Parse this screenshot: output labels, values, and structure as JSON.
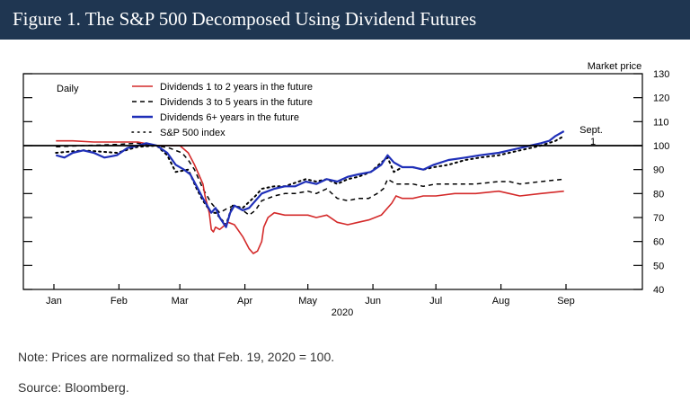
{
  "figure_title": "Figure 1. The S&P 500 Decomposed Using Dividend Futures",
  "note": "Note: Prices are normalized so that Feb. 19, 2020 = 100.",
  "source": "Source: Bloomberg.",
  "chart_data": {
    "type": "line",
    "frequency_label": "Daily",
    "xlabel": "2020",
    "ylabel": "Market price",
    "x_ticks": [
      "Jan",
      "Feb",
      "Mar",
      "Apr",
      "May",
      "Jun",
      "Jul",
      "Aug",
      "Sep"
    ],
    "y_ticks": [
      40,
      50,
      60,
      70,
      80,
      90,
      100,
      110,
      120,
      130
    ],
    "xlim": [
      "2020-01-01",
      "2020-09-01"
    ],
    "ylim": [
      40,
      130
    ],
    "reference_line": 100,
    "annotation": {
      "date": "2020-09-01",
      "text_line1": "Sept.",
      "text_line2": "1"
    },
    "colors": {
      "red": "#d42a2a",
      "blue": "#1f2fb8",
      "black": "#000000",
      "header": "#1f3651"
    },
    "series": [
      {
        "name": "Dividends 1 to 2 years in the future",
        "color": "#d42a2a",
        "style": "solid",
        "points": [
          [
            "2020-01-02",
            102
          ],
          [
            "2020-01-10",
            102
          ],
          [
            "2020-01-20",
            101.5
          ],
          [
            "2020-01-31",
            101.5
          ],
          [
            "2020-02-10",
            101.5
          ],
          [
            "2020-02-19",
            100
          ],
          [
            "2020-02-25",
            100
          ],
          [
            "2020-03-01",
            100
          ],
          [
            "2020-03-05",
            97
          ],
          [
            "2020-03-08",
            92
          ],
          [
            "2020-03-10",
            88
          ],
          [
            "2020-03-12",
            84
          ],
          [
            "2020-03-13",
            79
          ],
          [
            "2020-03-15",
            72
          ],
          [
            "2020-03-16",
            65
          ],
          [
            "2020-03-17",
            64
          ],
          [
            "2020-03-18",
            66
          ],
          [
            "2020-03-20",
            65
          ],
          [
            "2020-03-24",
            68
          ],
          [
            "2020-03-27",
            67
          ],
          [
            "2020-03-31",
            62
          ],
          [
            "2020-04-03",
            57
          ],
          [
            "2020-04-05",
            55
          ],
          [
            "2020-04-07",
            56
          ],
          [
            "2020-04-09",
            60
          ],
          [
            "2020-04-10",
            66
          ],
          [
            "2020-04-12",
            70
          ],
          [
            "2020-04-15",
            72
          ],
          [
            "2020-04-20",
            71
          ],
          [
            "2020-04-25",
            71
          ],
          [
            "2020-05-01",
            71
          ],
          [
            "2020-05-05",
            70
          ],
          [
            "2020-05-10",
            71
          ],
          [
            "2020-05-15",
            68
          ],
          [
            "2020-05-20",
            67
          ],
          [
            "2020-05-25",
            68
          ],
          [
            "2020-05-30",
            69
          ],
          [
            "2020-06-05",
            71
          ],
          [
            "2020-06-10",
            76
          ],
          [
            "2020-06-12",
            79
          ],
          [
            "2020-06-15",
            78
          ],
          [
            "2020-06-20",
            78
          ],
          [
            "2020-06-25",
            79
          ],
          [
            "2020-07-01",
            79
          ],
          [
            "2020-07-10",
            80
          ],
          [
            "2020-07-20",
            80
          ],
          [
            "2020-07-31",
            81
          ],
          [
            "2020-08-05",
            80
          ],
          [
            "2020-08-10",
            79
          ],
          [
            "2020-08-20",
            80
          ],
          [
            "2020-08-31",
            81
          ]
        ]
      },
      {
        "name": "Dividends 3 to 5 years in the future",
        "color": "#000000",
        "style": "dashed",
        "points": [
          [
            "2020-01-02",
            99.5
          ],
          [
            "2020-01-15",
            100
          ],
          [
            "2020-01-31",
            100.5
          ],
          [
            "2020-02-10",
            101
          ],
          [
            "2020-02-19",
            100
          ],
          [
            "2020-02-25",
            99
          ],
          [
            "2020-03-02",
            97
          ],
          [
            "2020-03-05",
            94
          ],
          [
            "2020-03-08",
            90
          ],
          [
            "2020-03-10",
            86
          ],
          [
            "2020-03-12",
            82
          ],
          [
            "2020-03-16",
            76
          ],
          [
            "2020-03-20",
            72
          ],
          [
            "2020-03-24",
            74
          ],
          [
            "2020-03-27",
            75
          ],
          [
            "2020-03-31",
            73
          ],
          [
            "2020-04-03",
            71
          ],
          [
            "2020-04-06",
            73
          ],
          [
            "2020-04-09",
            77
          ],
          [
            "2020-04-15",
            79
          ],
          [
            "2020-04-20",
            80
          ],
          [
            "2020-04-25",
            80
          ],
          [
            "2020-05-01",
            81
          ],
          [
            "2020-05-05",
            80
          ],
          [
            "2020-05-10",
            82
          ],
          [
            "2020-05-15",
            78
          ],
          [
            "2020-05-20",
            77
          ],
          [
            "2020-05-25",
            78
          ],
          [
            "2020-05-30",
            78
          ],
          [
            "2020-06-03",
            80
          ],
          [
            "2020-06-06",
            82
          ],
          [
            "2020-06-08",
            86
          ],
          [
            "2020-06-12",
            84
          ],
          [
            "2020-06-16",
            84
          ],
          [
            "2020-06-20",
            84
          ],
          [
            "2020-06-25",
            83
          ],
          [
            "2020-07-01",
            84
          ],
          [
            "2020-07-10",
            84
          ],
          [
            "2020-07-20",
            84
          ],
          [
            "2020-07-31",
            85
          ],
          [
            "2020-08-05",
            85
          ],
          [
            "2020-08-10",
            84
          ],
          [
            "2020-08-20",
            85
          ],
          [
            "2020-08-31",
            86
          ]
        ]
      },
      {
        "name": "Dividends 6+ years in the future",
        "color": "#1f2fb8",
        "style": "solid",
        "points": [
          [
            "2020-01-02",
            96
          ],
          [
            "2020-01-06",
            95
          ],
          [
            "2020-01-10",
            97
          ],
          [
            "2020-01-15",
            98
          ],
          [
            "2020-01-20",
            97
          ],
          [
            "2020-01-25",
            95
          ],
          [
            "2020-01-31",
            96
          ],
          [
            "2020-02-05",
            99
          ],
          [
            "2020-02-10",
            100
          ],
          [
            "2020-02-14",
            101
          ],
          [
            "2020-02-19",
            100
          ],
          [
            "2020-02-24",
            97
          ],
          [
            "2020-02-28",
            92
          ],
          [
            "2020-03-03",
            90
          ],
          [
            "2020-03-06",
            88
          ],
          [
            "2020-03-09",
            83
          ],
          [
            "2020-03-12",
            78
          ],
          [
            "2020-03-16",
            72
          ],
          [
            "2020-03-18",
            74
          ],
          [
            "2020-03-20",
            70
          ],
          [
            "2020-03-23",
            66
          ],
          [
            "2020-03-25",
            72
          ],
          [
            "2020-03-27",
            75
          ],
          [
            "2020-03-31",
            73
          ],
          [
            "2020-04-03",
            74
          ],
          [
            "2020-04-06",
            77
          ],
          [
            "2020-04-09",
            80
          ],
          [
            "2020-04-15",
            82
          ],
          [
            "2020-04-20",
            83
          ],
          [
            "2020-04-25",
            83
          ],
          [
            "2020-04-30",
            85
          ],
          [
            "2020-05-05",
            84
          ],
          [
            "2020-05-10",
            86
          ],
          [
            "2020-05-15",
            85
          ],
          [
            "2020-05-20",
            87
          ],
          [
            "2020-05-25",
            88
          ],
          [
            "2020-05-31",
            89
          ],
          [
            "2020-06-05",
            92
          ],
          [
            "2020-06-08",
            96
          ],
          [
            "2020-06-11",
            93
          ],
          [
            "2020-06-15",
            91
          ],
          [
            "2020-06-20",
            91
          ],
          [
            "2020-06-25",
            90
          ],
          [
            "2020-06-30",
            92
          ],
          [
            "2020-07-07",
            94
          ],
          [
            "2020-07-15",
            95
          ],
          [
            "2020-07-22",
            96
          ],
          [
            "2020-07-31",
            97
          ],
          [
            "2020-08-05",
            98
          ],
          [
            "2020-08-10",
            99
          ],
          [
            "2020-08-15",
            100
          ],
          [
            "2020-08-20",
            101
          ],
          [
            "2020-08-24",
            102
          ],
          [
            "2020-08-27",
            104
          ],
          [
            "2020-08-31",
            106
          ]
        ]
      },
      {
        "name": "S&P 500 index",
        "color": "#000000",
        "style": "dotted",
        "points": [
          [
            "2020-01-02",
            97
          ],
          [
            "2020-01-15",
            98
          ],
          [
            "2020-01-31",
            97
          ],
          [
            "2020-02-10",
            99.5
          ],
          [
            "2020-02-19",
            100
          ],
          [
            "2020-02-24",
            96
          ],
          [
            "2020-02-28",
            89
          ],
          [
            "2020-03-05",
            90
          ],
          [
            "2020-03-09",
            82
          ],
          [
            "2020-03-12",
            77
          ],
          [
            "2020-03-16",
            72
          ],
          [
            "2020-03-18",
            72
          ],
          [
            "2020-03-23",
            67
          ],
          [
            "2020-03-26",
            75
          ],
          [
            "2020-03-31",
            74
          ],
          [
            "2020-04-06",
            79
          ],
          [
            "2020-04-09",
            82
          ],
          [
            "2020-04-15",
            83
          ],
          [
            "2020-04-20",
            83
          ],
          [
            "2020-04-30",
            86
          ],
          [
            "2020-05-05",
            85
          ],
          [
            "2020-05-10",
            86
          ],
          [
            "2020-05-15",
            84
          ],
          [
            "2020-05-20",
            86
          ],
          [
            "2020-05-25",
            87
          ],
          [
            "2020-05-31",
            89
          ],
          [
            "2020-06-05",
            93
          ],
          [
            "2020-06-08",
            95
          ],
          [
            "2020-06-11",
            89
          ],
          [
            "2020-06-15",
            91
          ],
          [
            "2020-06-20",
            91
          ],
          [
            "2020-06-25",
            90
          ],
          [
            "2020-06-30",
            91
          ],
          [
            "2020-07-07",
            92
          ],
          [
            "2020-07-15",
            94
          ],
          [
            "2020-07-22",
            95
          ],
          [
            "2020-07-31",
            96
          ],
          [
            "2020-08-10",
            98
          ],
          [
            "2020-08-15",
            99
          ],
          [
            "2020-08-20",
            100
          ],
          [
            "2020-08-27",
            102
          ],
          [
            "2020-08-31",
            104
          ]
        ]
      }
    ]
  }
}
